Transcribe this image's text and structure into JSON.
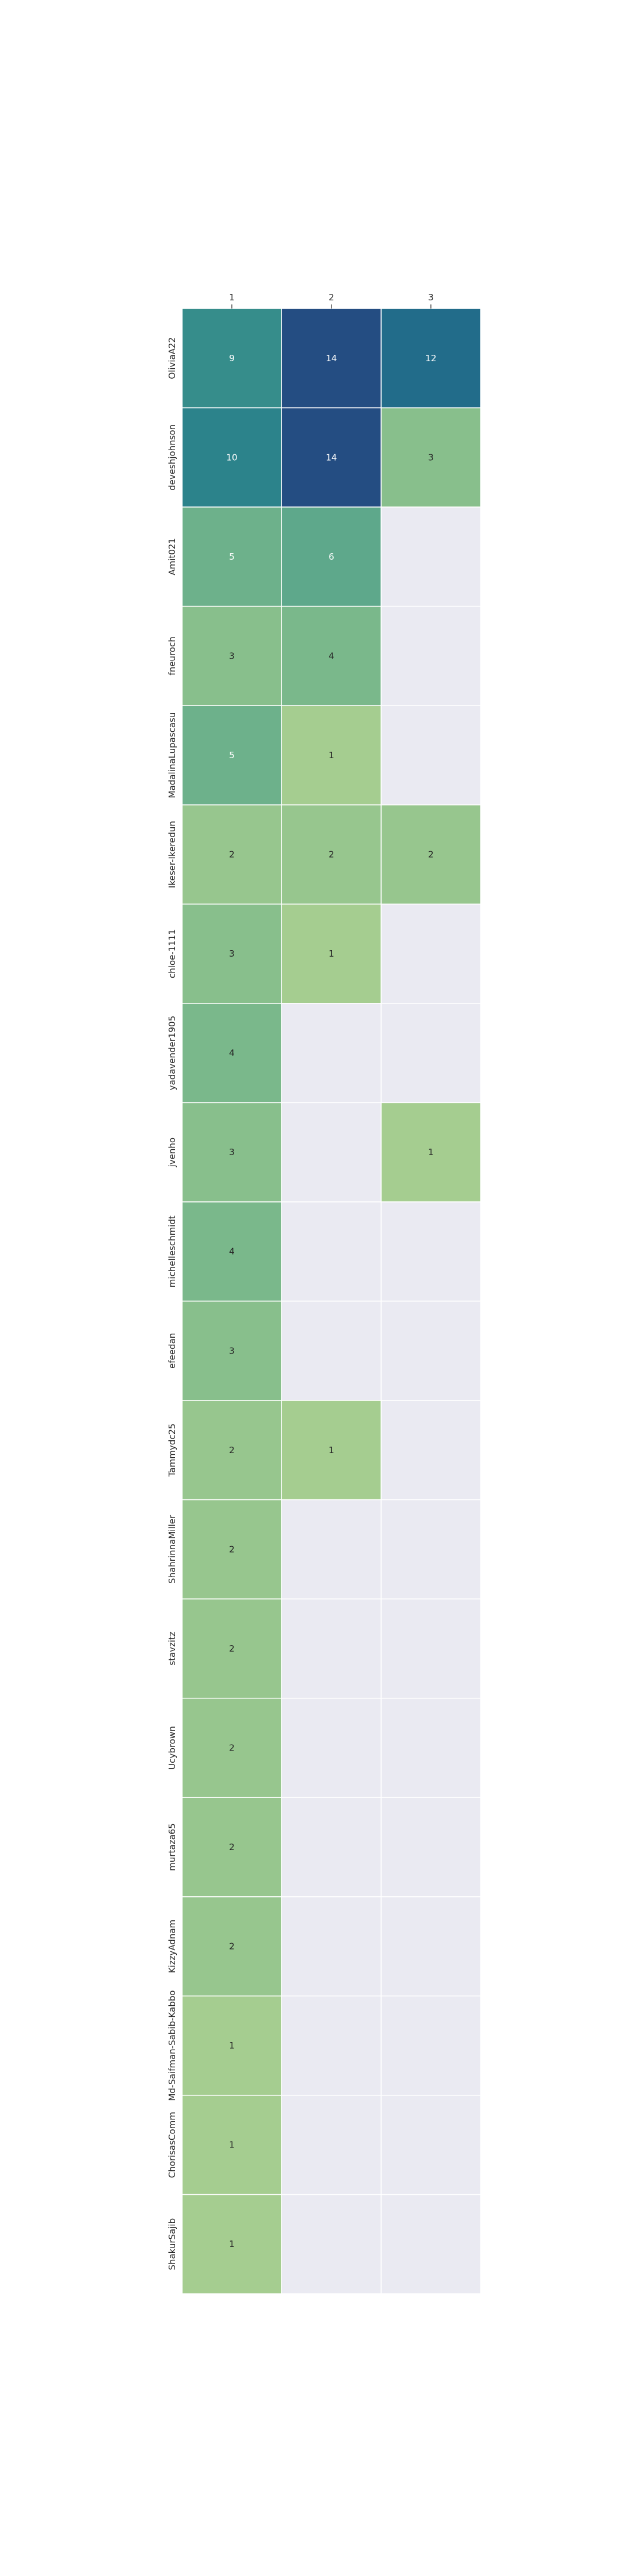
{
  "chart_data": {
    "type": "heatmap",
    "title": "",
    "xlabel": "",
    "ylabel": "",
    "x_categories": [
      "1",
      "2",
      "3"
    ],
    "y_categories": [
      "OliviaA22",
      "deveshjohnson",
      "Amit021",
      "fneuroch",
      "MadalinaLupascasu",
      "Ikeser-Ikeredun",
      "chloe-1111",
      "yadavender1905",
      "jvenho",
      "michelleschmidt",
      "efeedan",
      "Tammydc25",
      "ShahrinnaMiller",
      "stavzitz",
      "Ucybrown",
      "murtaza65",
      "KizzyAdnam",
      "Md-Saifman-Sabib-Kabbo",
      "ChorisasComm",
      "ShakurSajib"
    ],
    "values": [
      [
        9,
        14,
        12
      ],
      [
        10,
        14,
        3
      ],
      [
        5,
        6,
        null
      ],
      [
        3,
        4,
        null
      ],
      [
        5,
        1,
        null
      ],
      [
        2,
        2,
        2
      ],
      [
        3,
        1,
        null
      ],
      [
        4,
        null,
        null
      ],
      [
        3,
        null,
        1
      ],
      [
        4,
        null,
        null
      ],
      [
        3,
        null,
        null
      ],
      [
        2,
        1,
        null
      ],
      [
        2,
        null,
        null
      ],
      [
        2,
        null,
        null
      ],
      [
        2,
        null,
        null
      ],
      [
        2,
        null,
        null
      ],
      [
        2,
        null,
        null
      ],
      [
        1,
        null,
        null
      ],
      [
        1,
        null,
        null
      ],
      [
        1,
        null,
        null
      ]
    ],
    "value_range": [
      1,
      14
    ],
    "colormap": "crest",
    "empty_cell_color": "#eaeaf2",
    "grid": false,
    "x_axis_position": "top"
  }
}
